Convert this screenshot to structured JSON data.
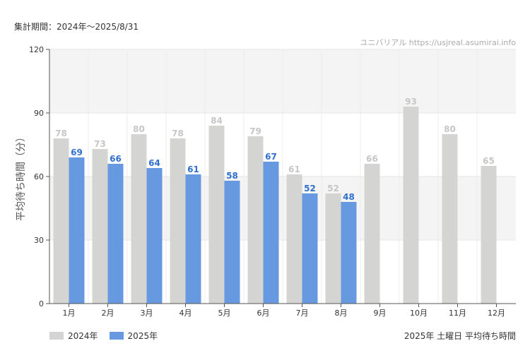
{
  "header": {
    "period": "集計期間：2024年～2025/8/31",
    "source": "ユニバリアル  https://usjreal.asumirai.info"
  },
  "footer": {
    "chart_caption": "2025年 土曜日 平均待ち時間"
  },
  "colors": {
    "series_2024": "#d4d4d2",
    "series_2025": "#6699e0",
    "label_2024": "#c6c6c6",
    "label_2025": "#2f6fd0",
    "band": "#f4f4f4"
  },
  "chart_data": {
    "type": "bar",
    "ylabel": "平均待ち時間（分）",
    "xlabel": "",
    "ylim": [
      0,
      120
    ],
    "yticks": [
      "0",
      "30",
      "60",
      "90",
      "120"
    ],
    "grid": true,
    "legend_position": "bottom-left",
    "categories": [
      "1月",
      "2月",
      "3月",
      "4月",
      "5月",
      "6月",
      "7月",
      "8月",
      "9月",
      "10月",
      "11月",
      "12月"
    ],
    "series": [
      {
        "name": "2024年",
        "values": [
          78,
          73,
          80,
          78,
          84,
          79,
          61,
          52,
          66,
          93,
          80,
          65
        ]
      },
      {
        "name": "2025年",
        "values": [
          69,
          66,
          64,
          61,
          58,
          67,
          52,
          48,
          null,
          null,
          null,
          null
        ]
      }
    ]
  }
}
